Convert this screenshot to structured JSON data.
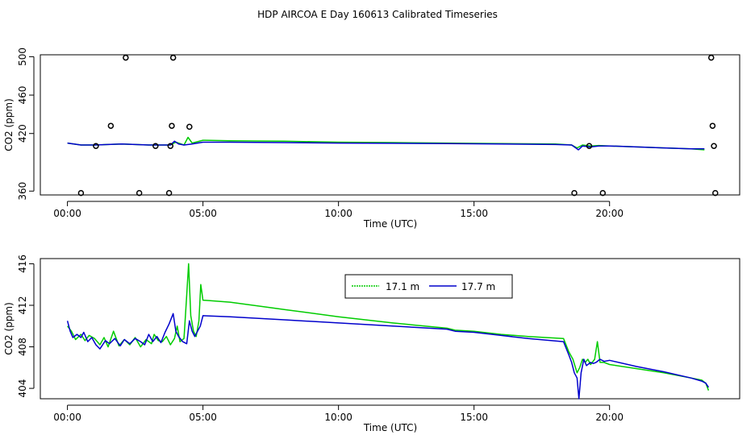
{
  "title": "HDP AIRCOA E  Day 160613  Calibrated Timeseries",
  "colors": {
    "series_17_1": "#00cc00",
    "series_17_7": "#0000cc",
    "axis": "#000000"
  },
  "chart_data": [
    {
      "type": "line",
      "xlabel": "Time (UTC)",
      "ylabel": "CO2 (ppm)",
      "xlim": [
        -1.0,
        24.8
      ],
      "ylim": [
        356,
        502
      ],
      "xticks": [
        0,
        5,
        10,
        15,
        20
      ],
      "xtick_labels": [
        "00:00",
        "05:00",
        "10:00",
        "15:00",
        "20:00"
      ],
      "yticks": [
        360,
        420,
        460,
        500
      ],
      "ytick_labels": [
        "360",
        "420",
        "460",
        "500"
      ],
      "grid": false,
      "legend": "none",
      "series": [
        {
          "color": "#00cc00",
          "x": [
            0,
            0.5,
            1.0,
            2.0,
            3.0,
            3.8,
            4.0,
            4.3,
            4.45,
            4.6,
            5.0,
            6.0,
            8.0,
            10.0,
            12.0,
            14.0,
            16.0,
            18.0,
            18.6,
            18.8,
            19.0,
            19.3,
            19.6,
            20.0,
            21.0,
            22.0,
            23.0,
            23.5
          ],
          "y": [
            410,
            408,
            408,
            409,
            408,
            408,
            411,
            408,
            416,
            410,
            413,
            412.5,
            412,
            411,
            410.5,
            410,
            409.5,
            409,
            408,
            405,
            408,
            407,
            407.5,
            407,
            406,
            405,
            404,
            403
          ]
        },
        {
          "color": "#0000cc",
          "x": [
            0,
            0.5,
            1.0,
            2.0,
            3.0,
            3.8,
            3.95,
            4.1,
            4.3,
            4.6,
            5.0,
            6.0,
            8.0,
            10.0,
            12.0,
            14.0,
            16.0,
            18.0,
            18.6,
            18.85,
            19.0,
            19.3,
            19.6,
            20.0,
            21.0,
            22.0,
            23.0,
            23.5
          ],
          "y": [
            410,
            408,
            408,
            409,
            408,
            408,
            412,
            409,
            408,
            409,
            411,
            411,
            410.5,
            410,
            409.8,
            409.5,
            409,
            408.5,
            408,
            403,
            407,
            406,
            407,
            407,
            406,
            405,
            404,
            404
          ]
        }
      ],
      "points": {
        "x": [
          0.5,
          1.05,
          1.6,
          2.15,
          2.65,
          3.25,
          3.75,
          3.8,
          3.85,
          3.9,
          4.5,
          18.7,
          19.25,
          19.75,
          23.75,
          23.8,
          23.85,
          23.9
        ],
        "y": [
          358,
          407,
          428,
          499,
          358,
          407,
          358,
          407,
          428,
          499,
          427,
          358,
          407,
          358,
          499,
          428,
          407,
          358
        ]
      }
    },
    {
      "type": "line",
      "xlabel": "Time (UTC)",
      "ylabel": "CO2 (ppm)",
      "xlim": [
        -1.0,
        24.8
      ],
      "ylim": [
        403,
        416.5
      ],
      "xticks": [
        0,
        5,
        10,
        15,
        20
      ],
      "xtick_labels": [
        "00:00",
        "05:00",
        "10:00",
        "15:00",
        "20:00"
      ],
      "yticks": [
        404,
        408,
        412,
        416
      ],
      "ytick_labels": [
        "404",
        "408",
        "412",
        "416"
      ],
      "grid": false,
      "legend": "top-center",
      "series": [
        {
          "name": "17.1 m",
          "color": "#00cc00",
          "x": [
            0,
            0.15,
            0.3,
            0.5,
            0.65,
            0.8,
            1.0,
            1.2,
            1.35,
            1.5,
            1.7,
            1.9,
            2.1,
            2.3,
            2.5,
            2.7,
            2.9,
            3.1,
            3.2,
            3.35,
            3.5,
            3.65,
            3.8,
            3.95,
            4.05,
            4.15,
            4.3,
            4.4,
            4.47,
            4.55,
            4.65,
            4.75,
            4.85,
            4.92,
            5.0,
            6.0,
            8.0,
            10.0,
            12.0,
            14.0,
            14.3,
            15.0,
            16.0,
            17.0,
            18.3,
            18.5,
            18.65,
            18.8,
            18.9,
            19.0,
            19.1,
            19.2,
            19.3,
            19.45,
            19.55,
            19.65,
            19.8,
            20.0,
            21.0,
            22.0,
            23.0,
            23.4,
            23.55,
            23.65
          ],
          "y": [
            410,
            409.5,
            408.7,
            409.2,
            408.6,
            409.1,
            408.8,
            408.2,
            408.9,
            408.0,
            409.5,
            408.1,
            408.7,
            408.2,
            408.9,
            408.0,
            408.7,
            408.3,
            409.2,
            408.6,
            408.5,
            409.0,
            408.2,
            408.8,
            410.0,
            408.5,
            408.8,
            413.0,
            416.0,
            411.0,
            409.5,
            409.0,
            410.5,
            414.0,
            412.5,
            412.3,
            411.6,
            410.9,
            410.3,
            409.8,
            409.6,
            409.5,
            409.2,
            409.0,
            408.8,
            407.5,
            406.8,
            405.5,
            406.0,
            406.8,
            406.5,
            406.8,
            406.3,
            406.8,
            408.5,
            406.5,
            406.5,
            406.3,
            405.9,
            405.5,
            405.0,
            404.8,
            404.5,
            403.8
          ]
        },
        {
          "name": "17.7 m",
          "color": "#0000cc",
          "x": [
            0,
            0.1,
            0.2,
            0.35,
            0.5,
            0.6,
            0.75,
            0.9,
            1.05,
            1.2,
            1.4,
            1.55,
            1.75,
            1.95,
            2.1,
            2.3,
            2.5,
            2.7,
            2.85,
            3.0,
            3.15,
            3.3,
            3.45,
            3.6,
            3.75,
            3.9,
            4.0,
            4.1,
            4.25,
            4.4,
            4.5,
            4.6,
            4.7,
            4.8,
            4.9,
            5.0,
            6.0,
            8.0,
            10.0,
            12.0,
            14.0,
            14.3,
            15.0,
            16.0,
            17.0,
            18.3,
            18.5,
            18.6,
            18.7,
            18.8,
            18.87,
            18.95,
            19.05,
            19.15,
            19.3,
            19.4,
            19.5,
            19.65,
            19.8,
            20.0,
            21.0,
            22.0,
            23.0,
            23.4,
            23.55,
            23.65
          ],
          "y": [
            410.5,
            409.5,
            408.9,
            409.2,
            408.9,
            409.4,
            408.5,
            408.9,
            408.2,
            407.8,
            408.6,
            408.3,
            408.8,
            408.1,
            408.7,
            408.3,
            408.8,
            408.5,
            408.2,
            409.2,
            408.5,
            409.0,
            408.4,
            409.4,
            410.2,
            411.2,
            409.5,
            409.0,
            408.5,
            408.3,
            410.5,
            409.5,
            409.0,
            409.5,
            410.0,
            411.0,
            410.9,
            410.6,
            410.3,
            410.0,
            409.7,
            409.5,
            409.4,
            409.1,
            408.8,
            408.5,
            407.2,
            406.5,
            405.5,
            405.0,
            403.0,
            405.5,
            406.8,
            406.2,
            406.5,
            406.4,
            406.5,
            406.8,
            406.6,
            406.7,
            406.1,
            405.6,
            405.0,
            404.7,
            404.5,
            404.1
          ]
        }
      ]
    }
  ]
}
